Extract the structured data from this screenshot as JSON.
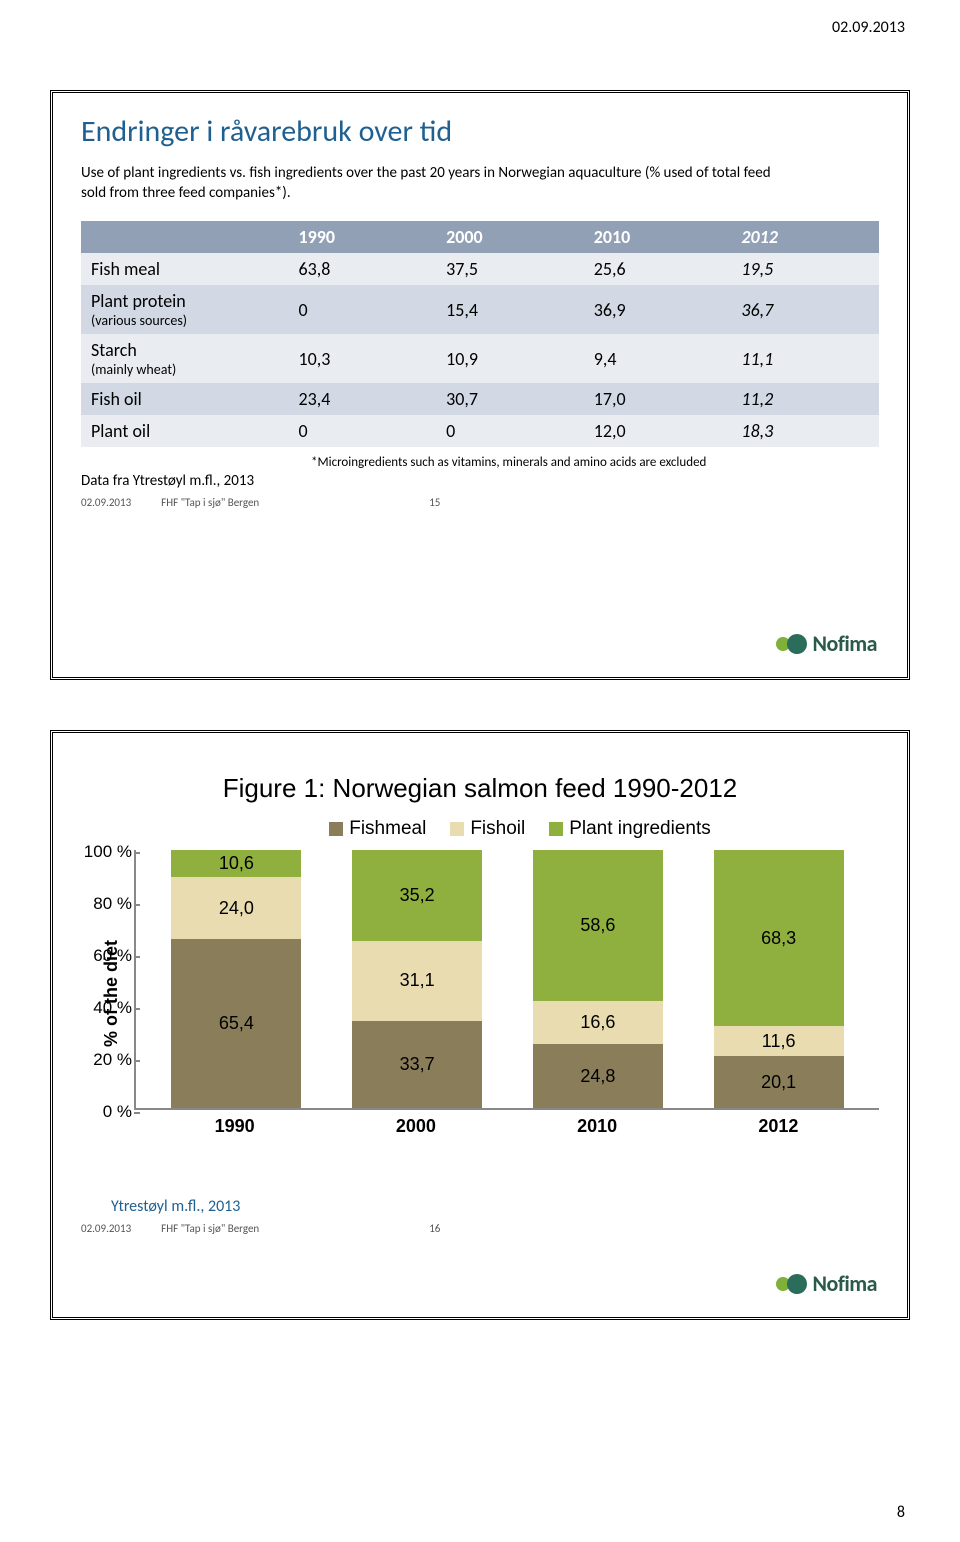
{
  "header": {
    "date": "02.09.2013",
    "page_number": "8"
  },
  "slide1": {
    "title": "Endringer i råvarebruk over tid",
    "subtitle": "Use of plant ingredients vs. fish ingredients over the past 20 years in Norwegian aquaculture (% used of total feed sold from three feed companies*).",
    "table": {
      "columns": [
        "",
        "1990",
        "2000",
        "2010",
        "2012"
      ],
      "rows": [
        {
          "label": "Fish meal",
          "sub": "",
          "vals": [
            "63,8",
            "37,5",
            "25,6",
            "19,5"
          ],
          "italic_last": true
        },
        {
          "label": "Plant protein",
          "sub": "(various sources)",
          "vals": [
            "0",
            "15,4",
            "36,9",
            "36,7"
          ],
          "italic_last": true
        },
        {
          "label": "Starch",
          "sub": "(mainly wheat)",
          "vals": [
            "10,3",
            "10,9",
            "9,4",
            "11,1"
          ],
          "italic_last": true
        },
        {
          "label": "Fish oil",
          "sub": "",
          "vals": [
            "23,4",
            "30,7",
            "17,0",
            "11,2"
          ],
          "italic_last": true
        },
        {
          "label": "Plant oil",
          "sub": "",
          "vals": [
            "0",
            "0",
            "12,0",
            "18,3"
          ],
          "italic_last": true
        }
      ]
    },
    "footnote": "*Microingredients such as vitamins, minerals and amino acids are excluded",
    "source": "Data fra Ytrestøyl m.fl., 2013",
    "footer": {
      "date": "02.09.2013",
      "text": "FHF \"Tap i sjø\" Bergen",
      "num": "15"
    }
  },
  "slide2": {
    "chart": {
      "title": "Figure 1: Norwegian salmon feed 1990-2012",
      "ylabel": "% of the diet",
      "legend": [
        {
          "label": "Fishmeal",
          "color": "#8a7e5a"
        },
        {
          "label": "Fishoil",
          "color": "#e8dcb0"
        },
        {
          "label": "Plant ingredients",
          "color": "#8fb03f"
        }
      ],
      "yticks": [
        "100 %",
        "80 %",
        "60 %",
        "40 %",
        "20 %",
        "0 %"
      ],
      "ylim": [
        0,
        100
      ],
      "categories": [
        "1990",
        "2000",
        "2010",
        "2012"
      ],
      "stacks": [
        {
          "fishmeal": 65.4,
          "fishoil": 24.0,
          "plant": 10.6
        },
        {
          "fishmeal": 33.7,
          "fishoil": 31.1,
          "plant": 35.2
        },
        {
          "fishmeal": 24.8,
          "fishoil": 16.6,
          "plant": 58.6
        },
        {
          "fishmeal": 20.1,
          "fishoil": 11.6,
          "plant": 68.3
        }
      ],
      "segment_labels": [
        {
          "fishmeal": "65,4",
          "fishoil": "24,0",
          "plant": "10,6"
        },
        {
          "fishmeal": "33,7",
          "fishoil": "31,1",
          "plant": "35,2"
        },
        {
          "fishmeal": "24,8",
          "fishoil": "16,6",
          "plant": "58,6"
        },
        {
          "fishmeal": "20,1",
          "fishoil": "11,6",
          "plant": "68,3"
        }
      ],
      "colors": {
        "fishmeal": "#8a7e5a",
        "fishoil": "#e8dcb0",
        "plant": "#8fb03f"
      }
    },
    "source": "Ytrestøyl m.fl., 2013",
    "footer": {
      "date": "02.09.2013",
      "text": "FHF \"Tap i sjø\" Bergen",
      "num": "16"
    }
  },
  "logo": {
    "text": "Nofima"
  }
}
